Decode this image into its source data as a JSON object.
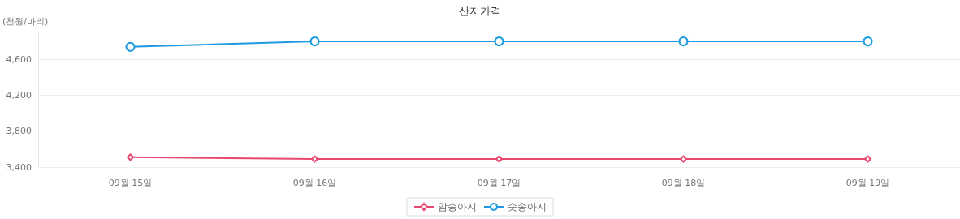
{
  "chart_data": {
    "type": "line",
    "title": "산지가격",
    "ylabel": "(천원/마리)",
    "categories": [
      "09월 15일",
      "09월 16일",
      "09월 17일",
      "09월 18일",
      "09월 19일"
    ],
    "series": [
      {
        "name": "암송아지",
        "color": "#e8476f",
        "values": [
          3510,
          3490,
          3490,
          3490,
          3490
        ],
        "marker": "diamond"
      },
      {
        "name": "숫송아지",
        "color": "#1e9be0",
        "values": [
          4740,
          4800,
          4800,
          4800,
          4800
        ],
        "marker": "circle"
      }
    ],
    "ylim": [
      3400,
      4900
    ],
    "yticks": [
      {
        "value": 3400,
        "label": "3,400"
      },
      {
        "value": 3800,
        "label": "3,800"
      },
      {
        "value": 4200,
        "label": "4,200"
      },
      {
        "value": 4600,
        "label": "4,600"
      }
    ],
    "grid": "y",
    "legend": "bottom",
    "line_style": "solid"
  }
}
